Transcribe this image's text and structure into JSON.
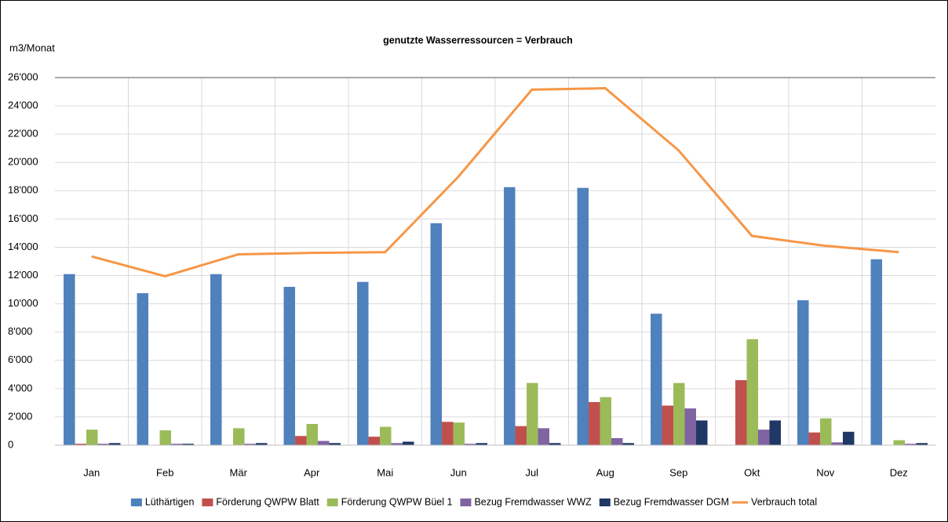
{
  "chart_data": {
    "type": "bar",
    "title": "genutzte Wasserressourcen = Verbrauch",
    "y_label": "m3/Monat",
    "categories": [
      "Jan",
      "Feb",
      "Mär",
      "Apr",
      "Mai",
      "Jun",
      "Jul",
      "Aug",
      "Sep",
      "Okt",
      "Nov",
      "Dez"
    ],
    "series": [
      {
        "name": "Lüthärtigen",
        "color": "#4f81bd",
        "values": [
          12100,
          10750,
          12100,
          11200,
          11550,
          15700,
          18250,
          18200,
          9300,
          0,
          10250,
          13150
        ]
      },
      {
        "name": "Förderung QWPW Blatt",
        "color": "#c0504d",
        "values": [
          100,
          0,
          0,
          650,
          600,
          1650,
          1350,
          3050,
          2800,
          4600,
          900,
          0
        ]
      },
      {
        "name": "Förderung QWPW Büel 1",
        "color": "#9bbb59",
        "values": [
          1100,
          1050,
          1200,
          1500,
          1300,
          1600,
          4400,
          3400,
          4400,
          7500,
          1900,
          350
        ]
      },
      {
        "name": "Bezug Fremdwasser WWZ",
        "color": "#8064a2",
        "values": [
          100,
          100,
          100,
          300,
          150,
          100,
          1200,
          500,
          2600,
          1100,
          200,
          100
        ]
      },
      {
        "name": "Bezug Fremdwasser DGM",
        "color": "#1f3864",
        "values": [
          150,
          100,
          150,
          150,
          250,
          150,
          150,
          150,
          1750,
          1750,
          950,
          150
        ]
      },
      {
        "name": "Verbrauch total",
        "color": "#f79646",
        "type": "line",
        "values": [
          13350,
          11950,
          13500,
          13600,
          13650,
          19000,
          25150,
          25250,
          20850,
          14800,
          14100,
          13650
        ]
      }
    ],
    "ylim": [
      0,
      26000
    ],
    "yticks": [
      0,
      {
        "value": 2000,
        "label": "2'000"
      },
      {
        "value": 4000,
        "label": "4'000"
      },
      {
        "value": 6000,
        "label": "6'000"
      },
      {
        "value": 8000,
        "label": "8'000"
      },
      {
        "value": 10000,
        "label": "10'000"
      },
      {
        "value": 12000,
        "label": "12'000"
      },
      {
        "value": 14000,
        "label": "14'000"
      },
      {
        "value": 16000,
        "label": "16'000"
      },
      {
        "value": 18000,
        "label": "18'000"
      },
      {
        "value": 20000,
        "label": "20'000"
      },
      {
        "value": 22000,
        "label": "22'000"
      },
      {
        "value": 24000,
        "label": "24'000"
      },
      {
        "value": 26000,
        "label": "26'000"
      }
    ],
    "grid": true,
    "legend": "bottom"
  }
}
